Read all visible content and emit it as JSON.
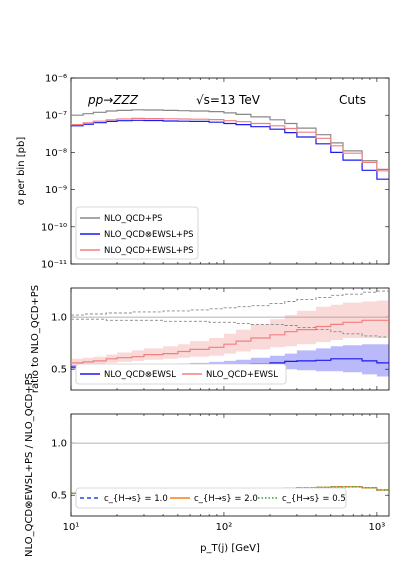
{
  "chart_data": [
    {
      "type": "line",
      "panel": "main",
      "ylabel": "σ per bin [pb]",
      "yscale": "log",
      "ylim": [
        1e-11,
        1e-06
      ],
      "xscale": "log",
      "xlim": [
        10,
        1200
      ],
      "yticks": [
        "10⁻¹¹",
        "10⁻¹⁰",
        "10⁻⁹",
        "10⁻⁸",
        "10⁻⁷",
        "10⁻⁶"
      ],
      "annotations": {
        "process": "pp→ZZZ",
        "energy": "√s=13 TeV",
        "cuts": "Cuts"
      },
      "legend_position": "lower left",
      "x_edges": [
        10,
        12,
        14,
        17,
        20,
        25,
        30,
        40,
        50,
        60,
        80,
        100,
        120,
        150,
        200,
        250,
        300,
        400,
        500,
        600,
        800,
        1000,
        1200
      ],
      "series": [
        {
          "name": "NLO_QCD+PS",
          "color": "#888888",
          "values": [
            1e-07,
            1.1e-07,
            1.2e-07,
            1.3e-07,
            1.35e-07,
            1.4e-07,
            1.38e-07,
            1.35e-07,
            1.32e-07,
            1.3e-07,
            1.25e-07,
            1.15e-07,
            1.05e-07,
            9e-08,
            7.5e-08,
            6e-08,
            4.5e-08,
            3e-08,
            1.8e-08,
            1.1e-08,
            6e-09,
            3.5e-09
          ]
        },
        {
          "name": "NLO_QCD⊗EWSL+PS",
          "color": "#1a1aee",
          "values": [
            5.2e-08,
            5.7e-08,
            6.3e-08,
            6.8e-08,
            7.1e-08,
            7.3e-08,
            7.2e-08,
            7e-08,
            6.9e-08,
            6.8e-08,
            6.5e-08,
            6e-08,
            5.6e-08,
            4.9e-08,
            4.2e-08,
            3.4e-08,
            2.6e-08,
            1.7e-08,
            1e-08,
            6.2e-09,
            3.3e-09,
            1.9e-09
          ]
        },
        {
          "name": "NLO_QCD+EWSL+PS",
          "color": "#f08080",
          "values": [
            5.6e-08,
            6.2e-08,
            6.9e-08,
            7.5e-08,
            7.9e-08,
            8.2e-08,
            8.1e-08,
            8e-08,
            7.9e-08,
            7.8e-08,
            7.6e-08,
            7.1e-08,
            6.7e-08,
            6e-08,
            5.2e-08,
            4.4e-08,
            3.5e-08,
            2.4e-08,
            1.5e-08,
            9.5e-09,
            5.4e-09,
            3.2e-09
          ]
        }
      ]
    },
    {
      "type": "line",
      "panel": "ratio",
      "ylabel": "ratio to NLO_QCD+PS",
      "ylim": [
        0.3,
        1.28
      ],
      "yticks": [
        "0.5",
        "1.0"
      ],
      "legend_position": "lower left",
      "series": [
        {
          "name": "NLO_QCD⊗EWSL",
          "color": "#1a1aee",
          "values": [
            0.52,
            0.52,
            0.525,
            0.525,
            0.525,
            0.525,
            0.525,
            0.525,
            0.525,
            0.53,
            0.53,
            0.54,
            0.545,
            0.55,
            0.56,
            0.575,
            0.58,
            0.585,
            0.6,
            0.6,
            0.58,
            0.56
          ],
          "band_low": [
            0.5,
            0.5,
            0.505,
            0.505,
            0.505,
            0.505,
            0.505,
            0.505,
            0.505,
            0.505,
            0.5,
            0.5,
            0.5,
            0.5,
            0.5,
            0.5,
            0.49,
            0.48,
            0.48,
            0.47,
            0.45,
            0.43
          ],
          "band_high": [
            0.54,
            0.545,
            0.545,
            0.545,
            0.55,
            0.55,
            0.55,
            0.55,
            0.555,
            0.56,
            0.57,
            0.58,
            0.59,
            0.61,
            0.63,
            0.65,
            0.68,
            0.7,
            0.72,
            0.73,
            0.74,
            0.74
          ]
        },
        {
          "name": "NLO_QCD+EWSL",
          "color": "#f08080",
          "values": [
            0.56,
            0.57,
            0.58,
            0.6,
            0.61,
            0.62,
            0.64,
            0.65,
            0.67,
            0.69,
            0.71,
            0.74,
            0.77,
            0.8,
            0.83,
            0.86,
            0.88,
            0.91,
            0.93,
            0.95,
            0.97,
            0.97
          ],
          "band_low": [
            0.53,
            0.54,
            0.55,
            0.56,
            0.57,
            0.58,
            0.59,
            0.6,
            0.61,
            0.62,
            0.63,
            0.65,
            0.67,
            0.69,
            0.71,
            0.72,
            0.74,
            0.76,
            0.78,
            0.8,
            0.8,
            0.8
          ],
          "band_high": [
            0.6,
            0.61,
            0.62,
            0.64,
            0.66,
            0.68,
            0.7,
            0.72,
            0.74,
            0.77,
            0.8,
            0.84,
            0.88,
            0.93,
            0.98,
            1.02,
            1.06,
            1.1,
            1.12,
            1.14,
            1.15,
            1.16
          ]
        },
        {
          "name": "scale_upper",
          "color": "#888888",
          "values": [
            1.02,
            1.03,
            1.03,
            1.04,
            1.04,
            1.05,
            1.05,
            1.06,
            1.06,
            1.07,
            1.08,
            1.09,
            1.1,
            1.11,
            1.13,
            1.15,
            1.17,
            1.19,
            1.21,
            1.22,
            1.24,
            1.25
          ]
        },
        {
          "name": "scale_lower",
          "color": "#888888",
          "values": [
            0.98,
            0.98,
            0.98,
            0.97,
            0.97,
            0.97,
            0.97,
            0.96,
            0.96,
            0.96,
            0.95,
            0.95,
            0.94,
            0.93,
            0.93,
            0.92,
            0.9,
            0.88,
            0.86,
            0.84,
            0.82,
            0.81
          ]
        }
      ]
    },
    {
      "type": "line",
      "panel": "bottom",
      "ylabel": "NLO_QCD⊗EWSL+PS / NLO_QCD+PS",
      "xlabel": "p_T(j) [GeV]",
      "ylim": [
        0.3,
        1.28
      ],
      "yticks": [
        "0.5",
        "1.0"
      ],
      "xticks": [
        "10¹",
        "10²",
        "10³"
      ],
      "legend_position": "lower center",
      "series": [
        {
          "name": "c_{H→s} = 1.0",
          "color": "#1f4fd8",
          "dash": "4,3",
          "values": [
            0.52,
            0.52,
            0.525,
            0.525,
            0.525,
            0.525,
            0.525,
            0.525,
            0.53,
            0.53,
            0.535,
            0.54,
            0.545,
            0.55,
            0.56,
            0.565,
            0.57,
            0.575,
            0.58,
            0.58,
            0.57,
            0.55
          ]
        },
        {
          "name": "c_{H→s} = 2.0",
          "color": "#ff7f0e",
          "dash": "",
          "values": [
            0.52,
            0.52,
            0.525,
            0.525,
            0.525,
            0.525,
            0.525,
            0.525,
            0.53,
            0.53,
            0.535,
            0.54,
            0.545,
            0.55,
            0.56,
            0.565,
            0.57,
            0.575,
            0.58,
            0.58,
            0.57,
            0.55
          ]
        },
        {
          "name": "c_{H→s} = 0.5",
          "color": "#2ca02c",
          "dash": "1.5,2",
          "values": [
            0.52,
            0.52,
            0.525,
            0.525,
            0.525,
            0.525,
            0.525,
            0.525,
            0.53,
            0.53,
            0.535,
            0.54,
            0.545,
            0.55,
            0.56,
            0.565,
            0.57,
            0.575,
            0.58,
            0.58,
            0.57,
            0.55
          ]
        }
      ]
    }
  ]
}
